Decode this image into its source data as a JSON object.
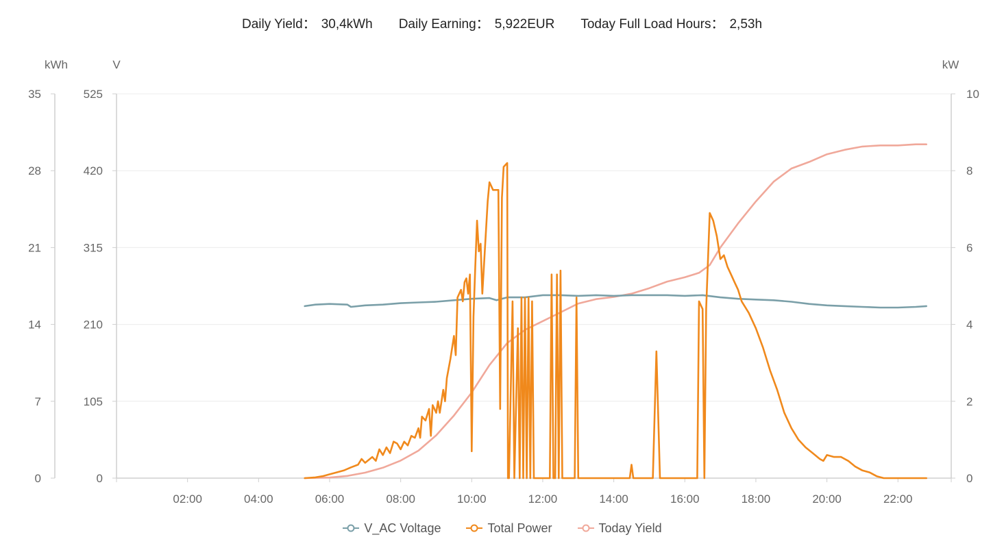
{
  "summary": {
    "yield_label": "Daily Yield：",
    "yield_value": "30,4kWh",
    "earning_label": "Daily Earning：",
    "earning_value": "5,922EUR",
    "hours_label": "Today Full Load Hours：",
    "hours_value": "2,53h"
  },
  "colors": {
    "voltage": "#7a9fa8",
    "power": "#f0891c",
    "yield": "#f0a89a",
    "grid": "#ececec",
    "axis": "#cfcfcf",
    "tick_text": "#666666"
  },
  "chart_data": {
    "type": "line",
    "x_axis": {
      "unit": "hour of day",
      "range": [
        0,
        23.5
      ],
      "tick_labels": [
        "02:00",
        "04:00",
        "06:00",
        "08:00",
        "10:00",
        "12:00",
        "14:00",
        "16:00",
        "18:00",
        "20:00",
        "22:00"
      ],
      "tick_values": [
        2,
        4,
        6,
        8,
        10,
        12,
        14,
        16,
        18,
        20,
        22
      ]
    },
    "y_axes": [
      {
        "id": "kwh",
        "unit_label": "kWh",
        "side": "left-outer",
        "range": [
          0,
          35
        ],
        "tick_labels": [
          "0",
          "7",
          "14",
          "21",
          "28",
          "35"
        ]
      },
      {
        "id": "v",
        "unit_label": "V",
        "side": "left-inner",
        "range": [
          0,
          525
        ],
        "tick_labels": [
          "0",
          "105",
          "210",
          "315",
          "420",
          "525"
        ]
      },
      {
        "id": "kw",
        "unit_label": "kW",
        "side": "right",
        "range": [
          0,
          10
        ],
        "tick_labels": [
          "0",
          "2",
          "4",
          "6",
          "8",
          "10"
        ]
      }
    ],
    "grid": true,
    "legend_position": "bottom-center",
    "series": [
      {
        "name": "V_AC Voltage",
        "axis": "v",
        "color_key": "voltage",
        "points": [
          [
            5.3,
            235
          ],
          [
            5.6,
            237
          ],
          [
            6.0,
            238
          ],
          [
            6.5,
            237
          ],
          [
            6.6,
            234
          ],
          [
            7.0,
            236
          ],
          [
            7.5,
            237
          ],
          [
            8.0,
            239
          ],
          [
            8.5,
            240
          ],
          [
            9.0,
            241
          ],
          [
            9.5,
            243
          ],
          [
            10.0,
            245
          ],
          [
            10.5,
            246
          ],
          [
            10.7,
            243
          ],
          [
            11.0,
            247
          ],
          [
            11.5,
            247
          ],
          [
            12.0,
            250
          ],
          [
            12.5,
            250
          ],
          [
            13.0,
            249
          ],
          [
            13.5,
            250
          ],
          [
            14.0,
            249
          ],
          [
            14.5,
            250
          ],
          [
            15.0,
            250
          ],
          [
            15.5,
            250
          ],
          [
            16.0,
            249
          ],
          [
            16.5,
            250
          ],
          [
            17.0,
            247
          ],
          [
            17.5,
            245
          ],
          [
            18.0,
            244
          ],
          [
            18.5,
            243
          ],
          [
            19.0,
            241
          ],
          [
            19.5,
            238
          ],
          [
            20.0,
            236
          ],
          [
            20.5,
            235
          ],
          [
            21.0,
            234
          ],
          [
            21.5,
            233
          ],
          [
            22.0,
            233
          ],
          [
            22.5,
            234
          ],
          [
            22.8,
            235
          ]
        ]
      },
      {
        "name": "Total Power",
        "axis": "kw",
        "color_key": "power",
        "points": [
          [
            5.3,
            0
          ],
          [
            5.6,
            0.02
          ],
          [
            5.8,
            0.05
          ],
          [
            6.0,
            0.1
          ],
          [
            6.2,
            0.15
          ],
          [
            6.4,
            0.2
          ],
          [
            6.6,
            0.28
          ],
          [
            6.8,
            0.35
          ],
          [
            6.9,
            0.5
          ],
          [
            7.0,
            0.4
          ],
          [
            7.2,
            0.55
          ],
          [
            7.3,
            0.45
          ],
          [
            7.4,
            0.75
          ],
          [
            7.5,
            0.6
          ],
          [
            7.6,
            0.8
          ],
          [
            7.7,
            0.65
          ],
          [
            7.8,
            0.95
          ],
          [
            7.9,
            0.9
          ],
          [
            8.0,
            0.75
          ],
          [
            8.1,
            0.95
          ],
          [
            8.2,
            0.85
          ],
          [
            8.3,
            1.1
          ],
          [
            8.4,
            1.05
          ],
          [
            8.5,
            1.3
          ],
          [
            8.55,
            1.05
          ],
          [
            8.6,
            1.6
          ],
          [
            8.7,
            1.5
          ],
          [
            8.8,
            1.8
          ],
          [
            8.85,
            1.1
          ],
          [
            8.9,
            1.9
          ],
          [
            9.0,
            1.7
          ],
          [
            9.05,
            2.0
          ],
          [
            9.1,
            1.7
          ],
          [
            9.2,
            2.3
          ],
          [
            9.25,
            2.0
          ],
          [
            9.3,
            2.6
          ],
          [
            9.4,
            3.1
          ],
          [
            9.5,
            3.7
          ],
          [
            9.55,
            3.2
          ],
          [
            9.6,
            4.7
          ],
          [
            9.7,
            4.9
          ],
          [
            9.75,
            4.6
          ],
          [
            9.8,
            5.1
          ],
          [
            9.85,
            5.2
          ],
          [
            9.9,
            4.8
          ],
          [
            9.95,
            5.3
          ],
          [
            10.0,
            0.7
          ],
          [
            10.05,
            4.2
          ],
          [
            10.1,
            5.5
          ],
          [
            10.15,
            6.7
          ],
          [
            10.2,
            5.9
          ],
          [
            10.25,
            6.1
          ],
          [
            10.3,
            4.8
          ],
          [
            10.35,
            5.6
          ],
          [
            10.4,
            6.4
          ],
          [
            10.45,
            7.2
          ],
          [
            10.5,
            7.7
          ],
          [
            10.55,
            7.6
          ],
          [
            10.6,
            7.5
          ],
          [
            10.7,
            7.5
          ],
          [
            10.75,
            7.5
          ],
          [
            10.8,
            1.8
          ],
          [
            10.85,
            7.3
          ],
          [
            10.9,
            8.1
          ],
          [
            10.95,
            8.15
          ],
          [
            11.0,
            8.2
          ],
          [
            11.02,
            0
          ],
          [
            11.05,
            0
          ],
          [
            11.15,
            4.6
          ],
          [
            11.2,
            0
          ],
          [
            11.3,
            3.9
          ],
          [
            11.35,
            0
          ],
          [
            11.4,
            4.7
          ],
          [
            11.45,
            0
          ],
          [
            11.5,
            4.7
          ],
          [
            11.55,
            0
          ],
          [
            11.6,
            4.7
          ],
          [
            11.65,
            0
          ],
          [
            11.7,
            4.6
          ],
          [
            11.75,
            0
          ],
          [
            12.2,
            0
          ],
          [
            12.25,
            5.3
          ],
          [
            12.3,
            0
          ],
          [
            12.35,
            0
          ],
          [
            12.4,
            5.3
          ],
          [
            12.45,
            0
          ],
          [
            12.5,
            5.4
          ],
          [
            12.55,
            0
          ],
          [
            12.9,
            0
          ],
          [
            12.95,
            4.7
          ],
          [
            13.0,
            0
          ],
          [
            14.45,
            0
          ],
          [
            14.5,
            0.35
          ],
          [
            14.55,
            0
          ],
          [
            15.1,
            0
          ],
          [
            15.2,
            3.3
          ],
          [
            15.3,
            0
          ],
          [
            16.35,
            0
          ],
          [
            16.4,
            4.6
          ],
          [
            16.5,
            4.4
          ],
          [
            16.55,
            0
          ],
          [
            16.6,
            4.4
          ],
          [
            16.7,
            6.9
          ],
          [
            16.8,
            6.7
          ],
          [
            16.9,
            6.3
          ],
          [
            17.0,
            5.7
          ],
          [
            17.1,
            5.8
          ],
          [
            17.2,
            5.5
          ],
          [
            17.3,
            5.3
          ],
          [
            17.4,
            5.1
          ],
          [
            17.5,
            4.9
          ],
          [
            17.6,
            4.6
          ],
          [
            17.8,
            4.3
          ],
          [
            18.0,
            3.9
          ],
          [
            18.2,
            3.4
          ],
          [
            18.4,
            2.8
          ],
          [
            18.6,
            2.3
          ],
          [
            18.8,
            1.7
          ],
          [
            19.0,
            1.3
          ],
          [
            19.2,
            1.0
          ],
          [
            19.4,
            0.8
          ],
          [
            19.6,
            0.65
          ],
          [
            19.8,
            0.5
          ],
          [
            19.9,
            0.45
          ],
          [
            20.0,
            0.6
          ],
          [
            20.2,
            0.55
          ],
          [
            20.4,
            0.55
          ],
          [
            20.5,
            0.5
          ],
          [
            20.6,
            0.45
          ],
          [
            20.8,
            0.3
          ],
          [
            21.0,
            0.2
          ],
          [
            21.2,
            0.15
          ],
          [
            21.4,
            0.05
          ],
          [
            21.6,
            0.0
          ],
          [
            22.0,
            0.0
          ],
          [
            22.8,
            0.0
          ]
        ]
      },
      {
        "name": "Today Yield",
        "axis": "kwh",
        "color_key": "yield",
        "points": [
          [
            5.3,
            0
          ],
          [
            6.0,
            0.05
          ],
          [
            6.5,
            0.2
          ],
          [
            7.0,
            0.5
          ],
          [
            7.5,
            0.95
          ],
          [
            8.0,
            1.6
          ],
          [
            8.5,
            2.5
          ],
          [
            9.0,
            3.9
          ],
          [
            9.5,
            5.7
          ],
          [
            10.0,
            7.8
          ],
          [
            10.5,
            10.3
          ],
          [
            11.0,
            12.3
          ],
          [
            11.5,
            13.5
          ],
          [
            12.0,
            14.3
          ],
          [
            12.5,
            15.1
          ],
          [
            13.0,
            15.9
          ],
          [
            13.5,
            16.3
          ],
          [
            14.0,
            16.5
          ],
          [
            14.5,
            16.8
          ],
          [
            15.0,
            17.3
          ],
          [
            15.5,
            17.9
          ],
          [
            16.0,
            18.3
          ],
          [
            16.4,
            18.7
          ],
          [
            16.7,
            19.4
          ],
          [
            17.0,
            21.0
          ],
          [
            17.5,
            23.2
          ],
          [
            18.0,
            25.2
          ],
          [
            18.5,
            27.0
          ],
          [
            19.0,
            28.2
          ],
          [
            19.5,
            28.8
          ],
          [
            20.0,
            29.5
          ],
          [
            20.5,
            29.9
          ],
          [
            21.0,
            30.2
          ],
          [
            21.5,
            30.3
          ],
          [
            22.0,
            30.3
          ],
          [
            22.5,
            30.4
          ],
          [
            22.8,
            30.4
          ]
        ]
      }
    ]
  }
}
